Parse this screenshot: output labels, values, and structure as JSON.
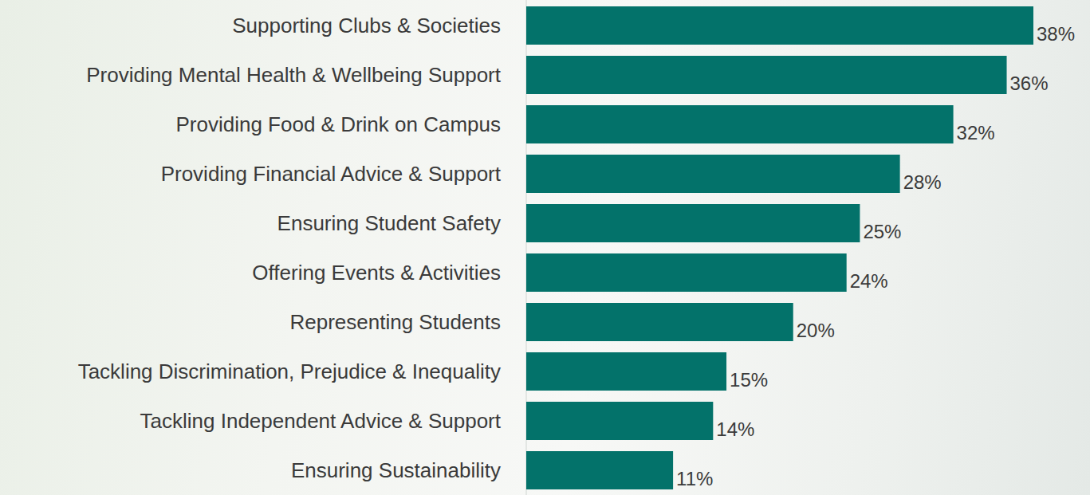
{
  "chart_data": {
    "type": "bar",
    "orientation": "horizontal",
    "categories": [
      "Supporting Clubs & Societies",
      "Providing Mental Health & Wellbeing Support",
      "Providing Food & Drink on Campus",
      "Providing Financial Advice & Support",
      "Ensuring Student Safety",
      "Offering Events & Activities",
      "Representing Students",
      "Tackling Discrimination, Prejudice & Inequality",
      "Tackling Independent Advice & Support",
      "Ensuring Sustainability"
    ],
    "values": [
      38,
      36,
      32,
      28,
      25,
      24,
      20,
      15,
      14,
      11
    ],
    "value_labels": [
      "38%",
      "36%",
      "32%",
      "28%",
      "25%",
      "24%",
      "20%",
      "15%",
      "14%",
      "11%"
    ],
    "color": "#03726a",
    "xlim": [
      0,
      38
    ],
    "data_labels": true,
    "tick_labels": "y",
    "grid": false
  }
}
